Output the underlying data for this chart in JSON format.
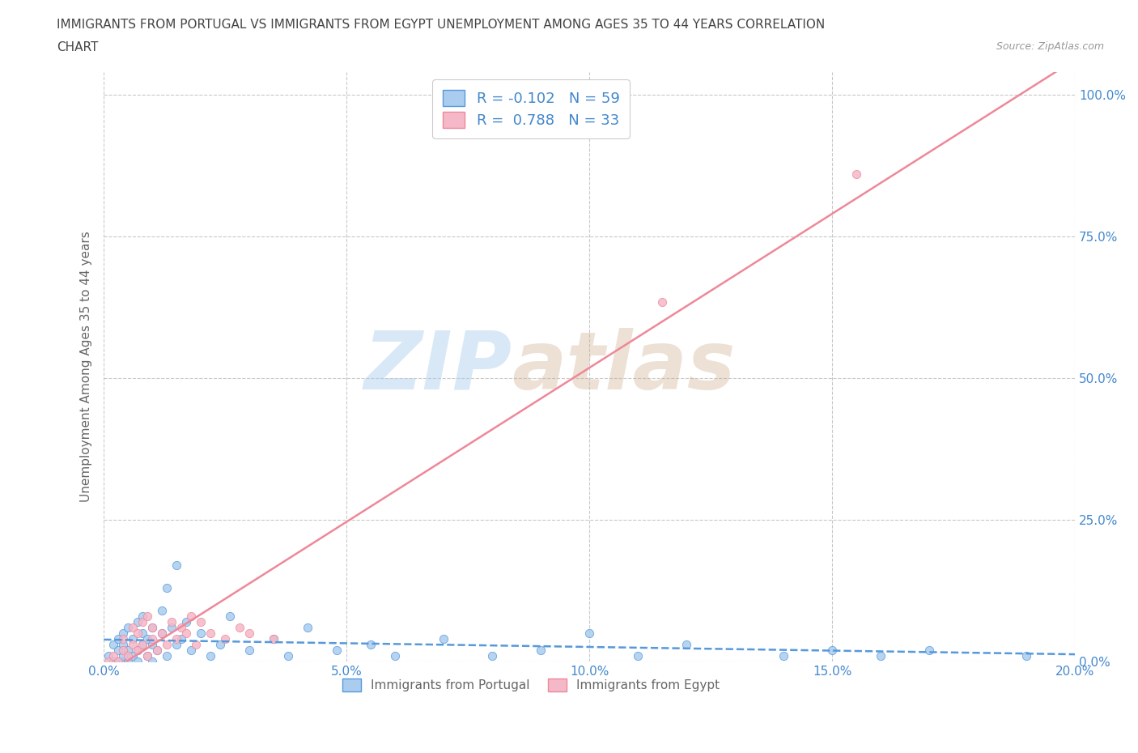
{
  "title_line1": "IMMIGRANTS FROM PORTUGAL VS IMMIGRANTS FROM EGYPT UNEMPLOYMENT AMONG AGES 35 TO 44 YEARS CORRELATION",
  "title_line2": "CHART",
  "source": "Source: ZipAtlas.com",
  "ylabel": "Unemployment Among Ages 35 to 44 years",
  "xmin": 0.0,
  "xmax": 0.2,
  "ymin": 0.0,
  "ymax": 1.04,
  "yticks": [
    0.0,
    0.25,
    0.5,
    0.75,
    1.0
  ],
  "ytick_labels": [
    "0.0%",
    "25.0%",
    "50.0%",
    "75.0%",
    "100.0%"
  ],
  "xticks": [
    0.0,
    0.05,
    0.1,
    0.15,
    0.2
  ],
  "xtick_labels": [
    "0.0%",
    "5.0%",
    "10.0%",
    "15.0%",
    "20.0%"
  ],
  "portugal_color": "#aaccee",
  "egypt_color": "#f5b8c8",
  "portugal_line_color": "#5599dd",
  "egypt_line_color": "#ee8899",
  "portugal_R": -0.102,
  "portugal_N": 59,
  "egypt_R": 0.788,
  "egypt_N": 33,
  "watermark_zip": "ZIP",
  "watermark_atlas": "atlas",
  "background_color": "#ffffff",
  "grid_color": "#bbbbbb",
  "title_color": "#444444",
  "tick_color": "#4488cc",
  "portugal_scatter_x": [
    0.001,
    0.002,
    0.002,
    0.003,
    0.003,
    0.003,
    0.004,
    0.004,
    0.004,
    0.004,
    0.005,
    0.005,
    0.005,
    0.006,
    0.006,
    0.007,
    0.007,
    0.007,
    0.008,
    0.008,
    0.008,
    0.009,
    0.009,
    0.01,
    0.01,
    0.01,
    0.011,
    0.012,
    0.012,
    0.013,
    0.013,
    0.014,
    0.015,
    0.015,
    0.016,
    0.017,
    0.018,
    0.02,
    0.022,
    0.024,
    0.026,
    0.03,
    0.035,
    0.038,
    0.042,
    0.048,
    0.055,
    0.06,
    0.07,
    0.08,
    0.09,
    0.1,
    0.11,
    0.12,
    0.14,
    0.15,
    0.16,
    0.17,
    0.19
  ],
  "portugal_scatter_y": [
    0.01,
    0.0,
    0.03,
    0.0,
    0.02,
    0.04,
    0.0,
    0.01,
    0.03,
    0.05,
    0.0,
    0.02,
    0.06,
    0.01,
    0.04,
    0.0,
    0.02,
    0.07,
    0.03,
    0.05,
    0.08,
    0.01,
    0.04,
    0.0,
    0.03,
    0.06,
    0.02,
    0.05,
    0.09,
    0.01,
    0.13,
    0.06,
    0.03,
    0.17,
    0.04,
    0.07,
    0.02,
    0.05,
    0.01,
    0.03,
    0.08,
    0.02,
    0.04,
    0.01,
    0.06,
    0.02,
    0.03,
    0.01,
    0.04,
    0.01,
    0.02,
    0.05,
    0.01,
    0.03,
    0.01,
    0.02,
    0.01,
    0.02,
    0.01
  ],
  "egypt_scatter_x": [
    0.001,
    0.002,
    0.003,
    0.004,
    0.004,
    0.005,
    0.006,
    0.006,
    0.007,
    0.007,
    0.008,
    0.008,
    0.009,
    0.009,
    0.01,
    0.01,
    0.011,
    0.012,
    0.013,
    0.014,
    0.015,
    0.016,
    0.017,
    0.018,
    0.019,
    0.02,
    0.022,
    0.025,
    0.028,
    0.03,
    0.035,
    0.115,
    0.155
  ],
  "egypt_scatter_y": [
    0.0,
    0.01,
    0.0,
    0.02,
    0.04,
    0.01,
    0.03,
    0.06,
    0.02,
    0.05,
    0.07,
    0.03,
    0.01,
    0.08,
    0.04,
    0.06,
    0.02,
    0.05,
    0.03,
    0.07,
    0.04,
    0.06,
    0.05,
    0.08,
    0.03,
    0.07,
    0.05,
    0.04,
    0.06,
    0.05,
    0.04,
    0.635,
    0.86
  ]
}
